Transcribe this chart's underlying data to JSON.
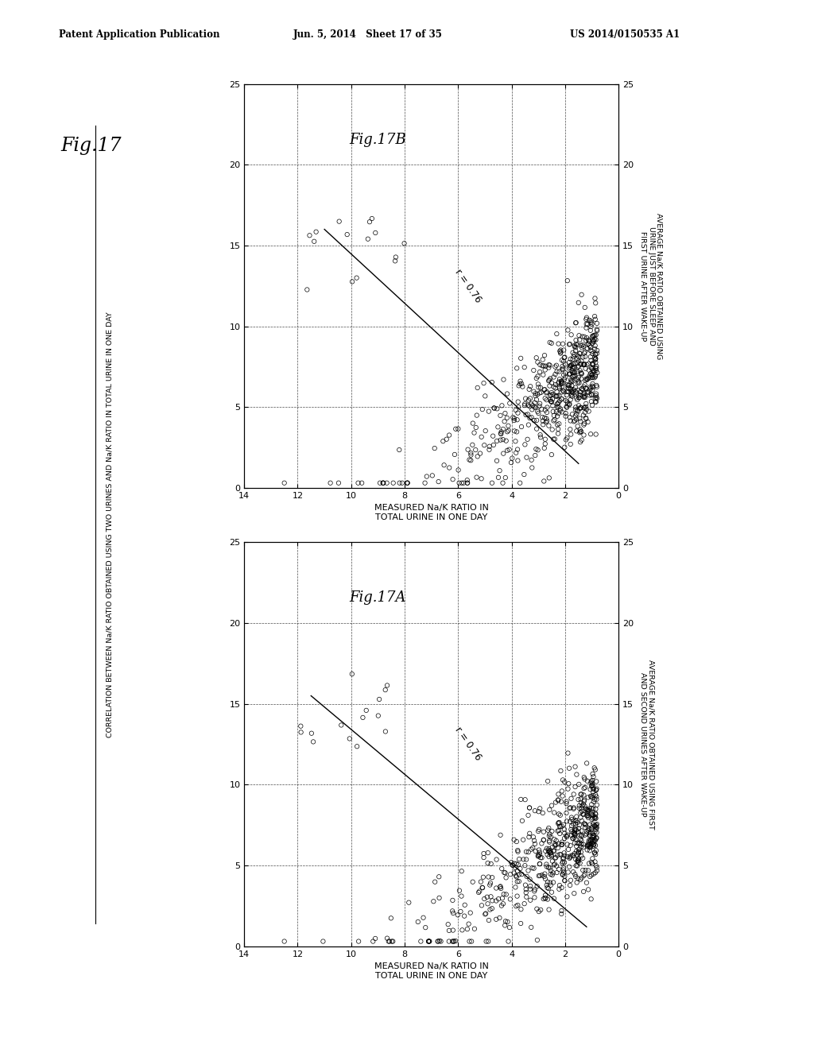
{
  "header_left": "Patent Application Publication",
  "header_mid": "Jun. 5, 2014   Sheet 17 of 35",
  "header_right": "US 2014/0150535 A1",
  "fig17_label": "Fig.17",
  "side_label_line1": "CORRELATION BETWEEN Na/K RATIO OBTAINED USING TWO URINES AND Na/K RATIO IN TOTAL URINE IN ONE DAY",
  "subplot_A": {
    "fig_label": "Fig.17A",
    "xlabel_line1": "MEASURED Na/K RATIO IN",
    "xlabel_line2": "TOTAL URINE IN ONE DAY",
    "ylabel": "AVERAGE Na/K RATIO OBTAINED USING FIRST\nAND SECOND URINES AFTER WAKE-UP",
    "r_text": "r = 0.76",
    "xmin": 0,
    "xmax": 14,
    "ymin": 0,
    "ymax": 25,
    "xticks": [
      0,
      2,
      4,
      6,
      8,
      10,
      12,
      14
    ],
    "yticks": [
      0,
      5,
      10,
      15,
      20,
      25
    ],
    "line_x1": 11.5,
    "line_y1": 15.5,
    "line_x2": 1.2,
    "line_y2": 1.2,
    "seed_A": 42
  },
  "subplot_B": {
    "fig_label": "Fig.17B",
    "xlabel_line1": "MEASURED Na/K RATIO IN",
    "xlabel_line2": "TOTAL URINE IN ONE DAY",
    "ylabel": "AVERAGE Na/K RATIO OBTAINED USING\nURINE JUST BEFORE SLEEP AND\nFIRST URINE AFTER WAKE-UP",
    "r_text": "r = 0.76",
    "xmin": 0,
    "xmax": 14,
    "ymin": 0,
    "ymax": 25,
    "xticks": [
      0,
      2,
      4,
      6,
      8,
      10,
      12,
      14
    ],
    "yticks": [
      0,
      5,
      10,
      15,
      20,
      25
    ],
    "line_x1": 11.0,
    "line_y1": 16.0,
    "line_x2": 1.5,
    "line_y2": 1.5,
    "seed_B": 123
  },
  "bg_color": "#ffffff",
  "scatter_color": "none",
  "scatter_edge": "#000000",
  "line_color": "#000000"
}
